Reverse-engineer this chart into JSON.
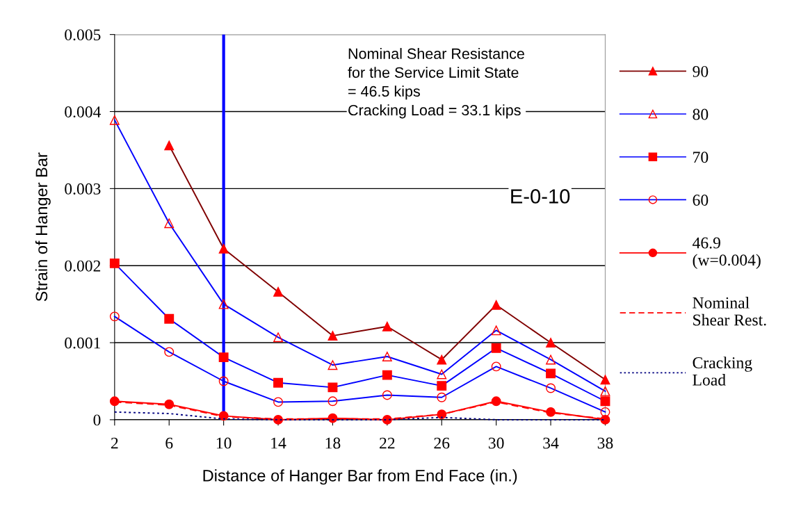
{
  "chart_data": {
    "type": "line",
    "xlabel": "Distance of Hanger Bar from End Face (in.)",
    "ylabel": "Strain of Hanger Bar",
    "x": [
      2,
      6,
      10,
      14,
      18,
      22,
      26,
      30,
      34,
      38
    ],
    "xlim": [
      2,
      38
    ],
    "xticks": [
      2,
      6,
      10,
      14,
      18,
      22,
      26,
      30,
      34,
      38
    ],
    "ylim": [
      0,
      0.005
    ],
    "yticks": [
      0,
      0.001,
      0.002,
      0.003,
      0.004,
      0.005
    ],
    "grid": "y",
    "legend": "right",
    "series": [
      {
        "name": "90",
        "color": "#800000",
        "marker": "triangle",
        "values": [
          null,
          0.00356,
          0.00222,
          0.00166,
          0.00109,
          0.00121,
          0.00078,
          0.00149,
          0.001,
          0.00052
        ]
      },
      {
        "name": "80",
        "color": "#0000ff",
        "marker": "triangle-open",
        "values": [
          0.00389,
          0.00255,
          0.0015,
          0.00107,
          0.00071,
          0.00082,
          0.00059,
          0.00116,
          0.00078,
          0.00037
        ]
      },
      {
        "name": "70",
        "color": "#0000ff",
        "marker": "square",
        "values": [
          0.00203,
          0.00131,
          0.00081,
          0.00048,
          0.00042,
          0.00058,
          0.00044,
          0.00093,
          0.0006,
          0.00024
        ]
      },
      {
        "name": "60",
        "color": "#0000ff",
        "marker": "circle-open",
        "values": [
          0.00134,
          0.00088,
          0.0005,
          0.00023,
          0.00024,
          0.00032,
          0.00029,
          0.00069,
          0.00041,
          0.0001
        ]
      },
      {
        "name": "46.9\n(w=0.004)",
        "color": "#ff0000",
        "marker": "circle",
        "values": [
          0.00024,
          0.0002,
          5e-05,
          0.0,
          2e-05,
          0.0,
          7e-05,
          0.00024,
          0.0001,
          0.0
        ]
      },
      {
        "name": "Nominal\nShear Rest.",
        "color": "#ff0000",
        "marker": "none",
        "line_style": "dashed",
        "values": [
          0.00023,
          0.00019,
          4e-05,
          1e-05,
          1e-05,
          1e-05,
          7e-05,
          0.00023,
          9e-05,
          1e-05
        ]
      },
      {
        "name": "Cracking\nLoad",
        "color": "#000080",
        "marker": "none",
        "line_style": "dotted",
        "values": [
          0.0001,
          8e-05,
          1e-05,
          0.0,
          0.0,
          0.0,
          3e-05,
          0.0,
          0.0,
          0.0
        ]
      }
    ],
    "ref_lines": [
      {
        "axis": "x",
        "value": 10,
        "color": "#0000ff"
      }
    ],
    "annotations": [
      "Nominal Shear Resistance\nfor the Service Limit State\n= 46.5 kips\nCracking Load = 33.1 kips",
      "E-0-10"
    ]
  }
}
